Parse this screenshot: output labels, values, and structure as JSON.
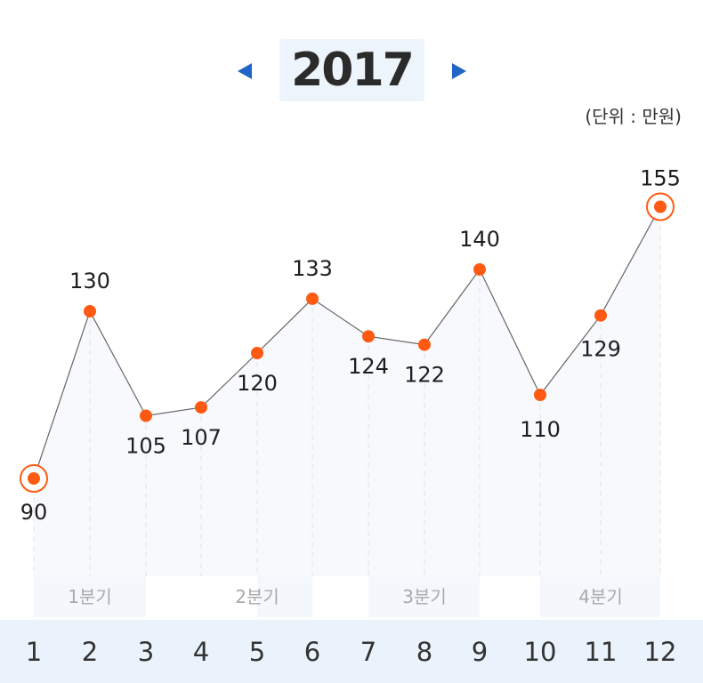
{
  "header": {
    "year": "2017",
    "prev_icon": "triangle-left-icon",
    "next_icon": "triangle-right-icon",
    "unit": "(단위 : 만원)"
  },
  "colors": {
    "accent_blue": "#1f66c6",
    "point": "#ff5a14",
    "line": "#666666",
    "month_bar": "#eaf3fc"
  },
  "chart_data": {
    "type": "line",
    "x": [
      "1",
      "2",
      "3",
      "4",
      "5",
      "6",
      "7",
      "8",
      "9",
      "10",
      "11",
      "12"
    ],
    "values": [
      90,
      130,
      105,
      107,
      120,
      133,
      124,
      122,
      140,
      110,
      129,
      155
    ],
    "highlighted": [
      "1",
      "12"
    ],
    "quarters": [
      "1분기",
      "2분기",
      "3분기",
      "4분기"
    ],
    "title": "2017",
    "ylabel": "(단위 : 만원)",
    "grid": false,
    "legend": "none"
  }
}
